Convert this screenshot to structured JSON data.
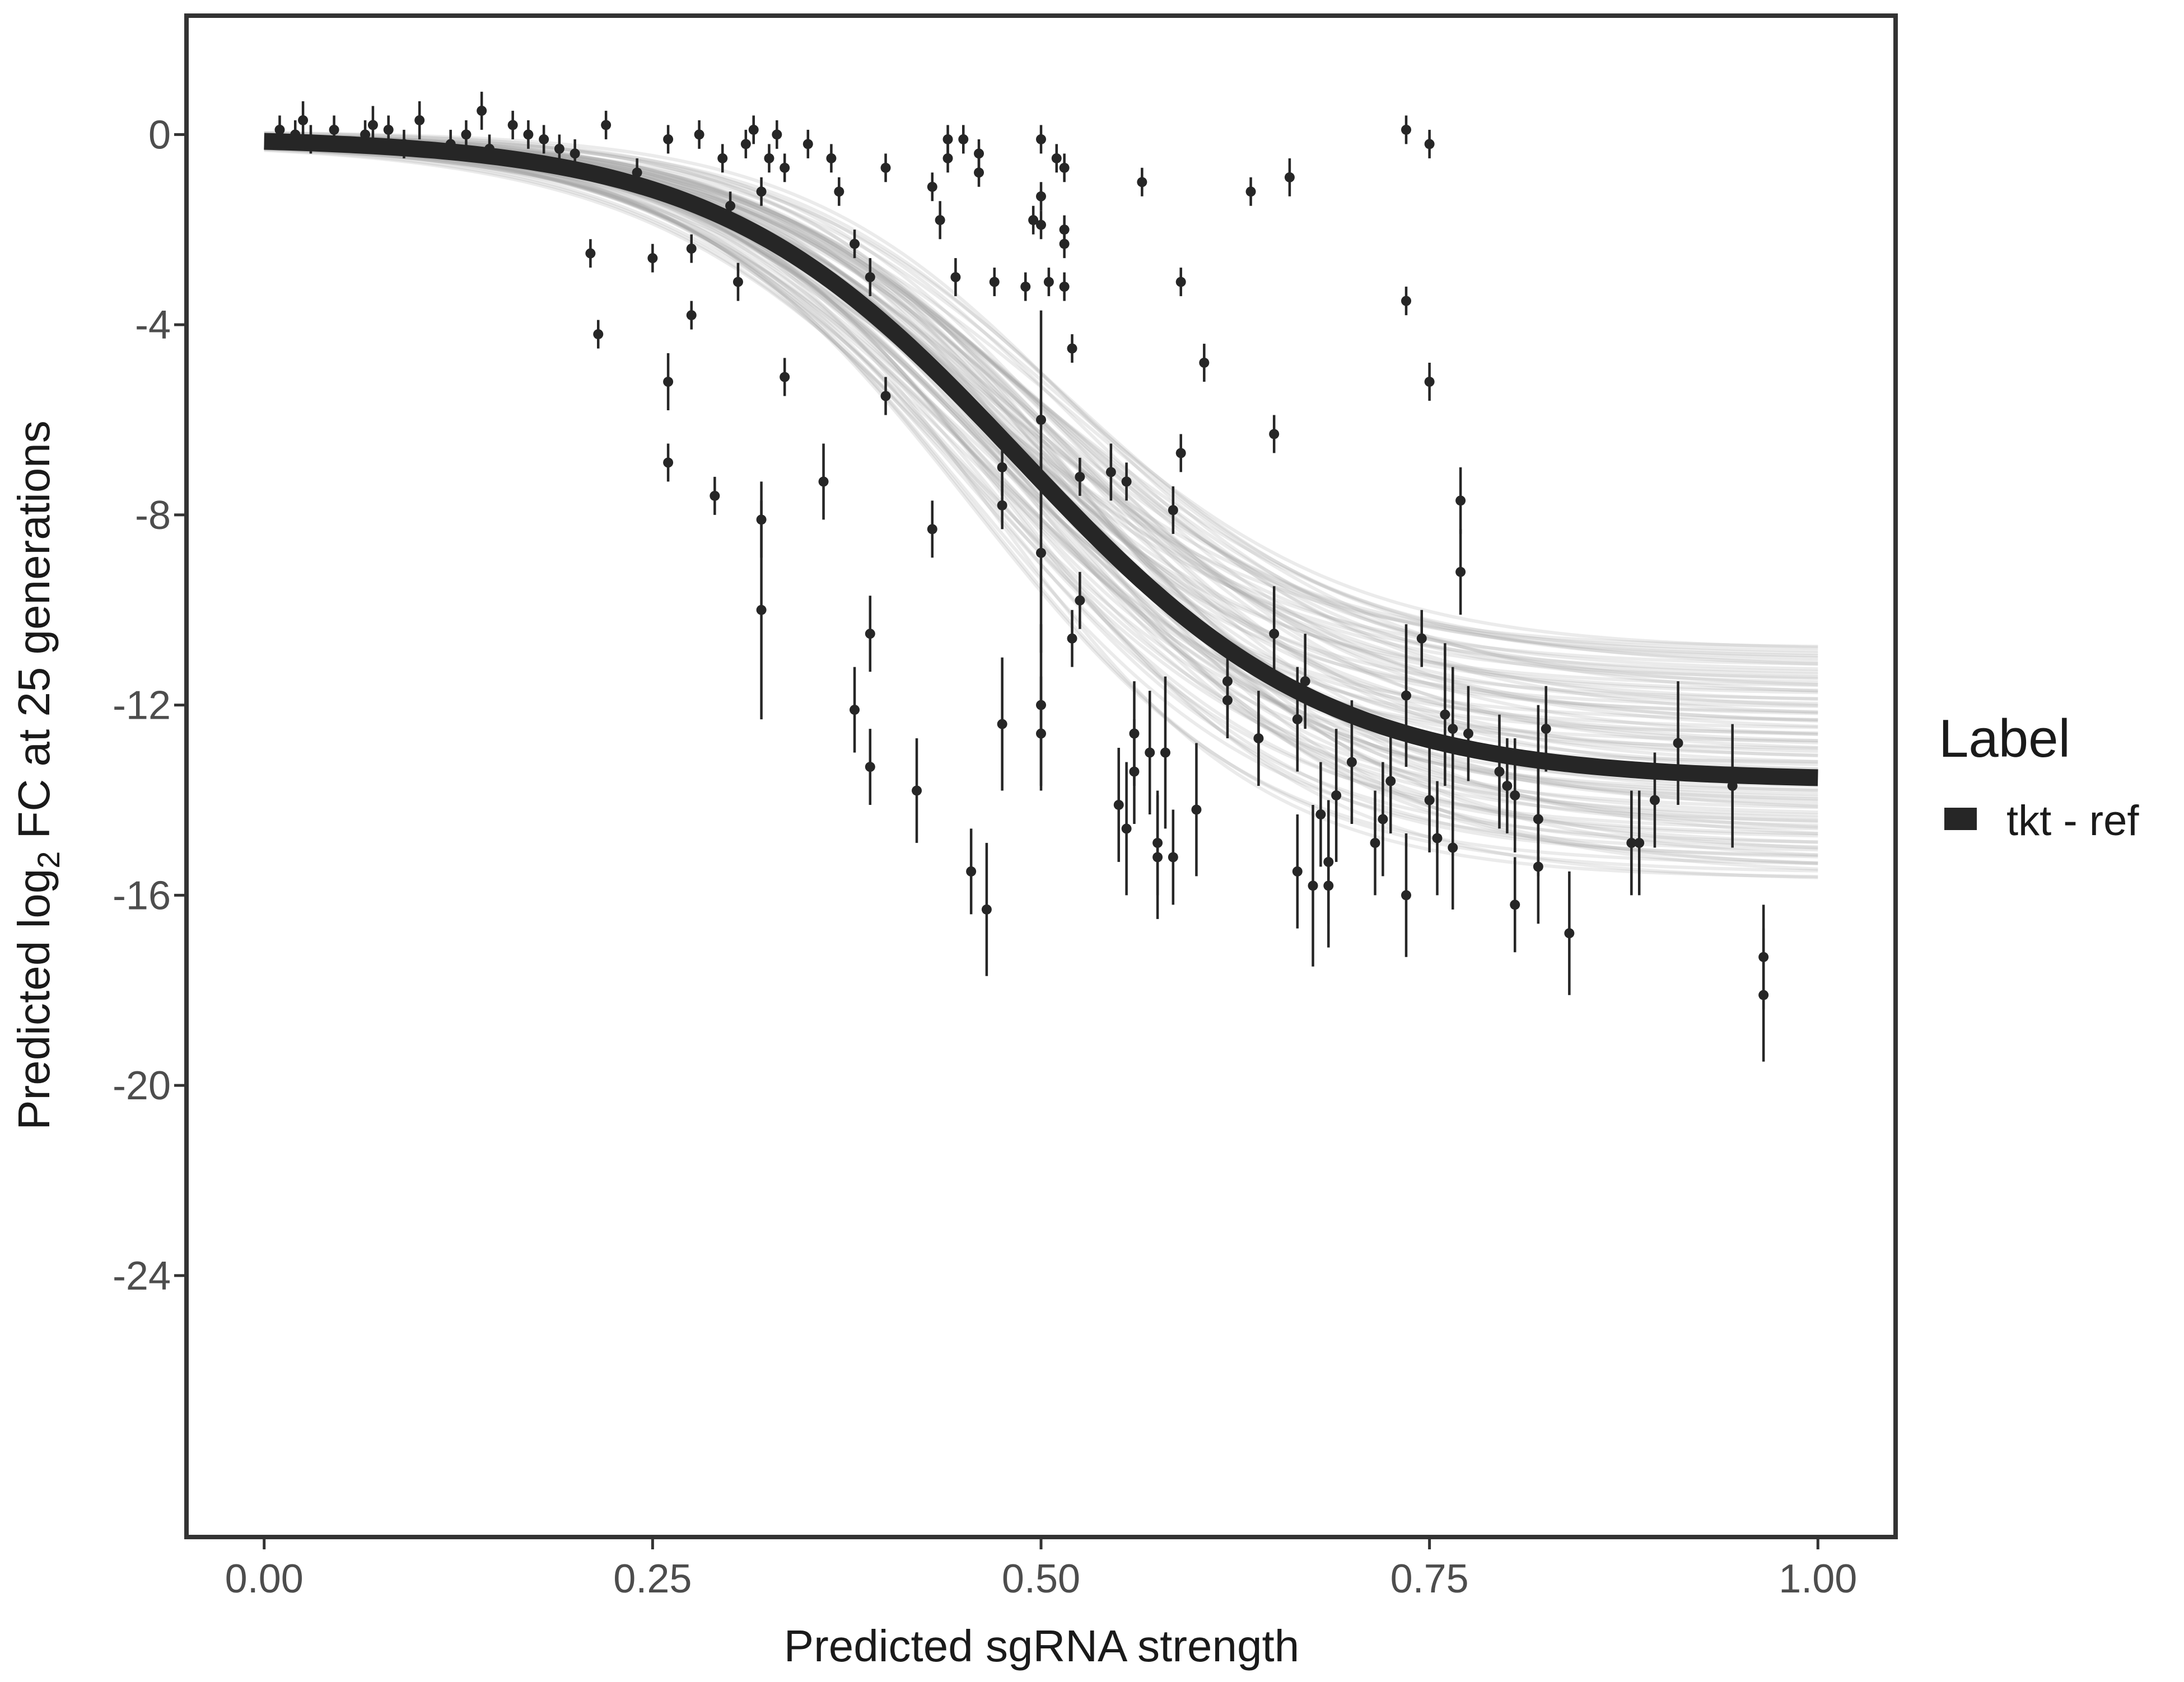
{
  "chart_data": {
    "type": "scatter",
    "xlabel": "Predicted sgRNA strength",
    "ylabel_prefix": "Predicted  log",
    "ylabel_sub": "2",
    "ylabel_suffix": " FC at 25 generations",
    "xlim": [
      -0.05,
      1.05
    ],
    "ylim": [
      -29.5,
      2.5
    ],
    "x_ticks": [
      0,
      0.25,
      0.5,
      0.75,
      1
    ],
    "x_tick_labels": [
      "0.00",
      "0.25",
      "0.50",
      "0.75",
      "1.00"
    ],
    "y_ticks": [
      0,
      -4,
      -8,
      -12,
      -16,
      -20,
      -24
    ],
    "y_tick_labels": [
      "0",
      "-4",
      "-8",
      "-12",
      "-16",
      "-20",
      "-24"
    ],
    "grid": false,
    "legend": {
      "title": "Label",
      "position": "right",
      "entries": [
        {
          "label": "tkt - ref",
          "color": "#262626"
        }
      ]
    },
    "fit_curve": {
      "type": "logistic",
      "upper": -0.05,
      "lower": -13.6,
      "midpoint": 0.487,
      "scale": 0.098,
      "color": "#262626",
      "band_color": "#a6a6a6",
      "band_upper_lower_asymptote": -10.8,
      "band_lower_lower_asymptote": -15.7
    },
    "points": [
      {
        "x": 0.01,
        "y": 0.1,
        "err": 0.3
      },
      {
        "x": 0.02,
        "y": 0.0,
        "err": 0.3
      },
      {
        "x": 0.025,
        "y": 0.3,
        "err": 0.4
      },
      {
        "x": 0.03,
        "y": -0.1,
        "err": 0.3
      },
      {
        "x": 0.045,
        "y": 0.1,
        "err": 0.3
      },
      {
        "x": 0.065,
        "y": 0.0,
        "err": 0.3
      },
      {
        "x": 0.07,
        "y": 0.2,
        "err": 0.4
      },
      {
        "x": 0.08,
        "y": 0.1,
        "err": 0.3
      },
      {
        "x": 0.09,
        "y": -0.2,
        "err": 0.3
      },
      {
        "x": 0.1,
        "y": 0.3,
        "err": 0.4
      },
      {
        "x": 0.12,
        "y": -0.2,
        "err": 0.3
      },
      {
        "x": 0.13,
        "y": 0.0,
        "err": 0.3
      },
      {
        "x": 0.14,
        "y": 0.5,
        "err": 0.4
      },
      {
        "x": 0.145,
        "y": -0.3,
        "err": 0.3
      },
      {
        "x": 0.16,
        "y": 0.2,
        "err": 0.3
      },
      {
        "x": 0.17,
        "y": 0.0,
        "err": 0.3
      },
      {
        "x": 0.18,
        "y": -0.1,
        "err": 0.3
      },
      {
        "x": 0.19,
        "y": -0.3,
        "err": 0.3
      },
      {
        "x": 0.2,
        "y": -0.4,
        "err": 0.3
      },
      {
        "x": 0.21,
        "y": -2.5,
        "err": 0.3
      },
      {
        "x": 0.215,
        "y": -4.2,
        "err": 0.3
      },
      {
        "x": 0.22,
        "y": 0.2,
        "err": 0.3
      },
      {
        "x": 0.24,
        "y": -0.8,
        "err": 0.3
      },
      {
        "x": 0.25,
        "y": -2.6,
        "err": 0.3
      },
      {
        "x": 0.26,
        "y": -0.1,
        "err": 0.3
      },
      {
        "x": 0.26,
        "y": -5.2,
        "err": 0.6
      },
      {
        "x": 0.26,
        "y": -6.9,
        "err": 0.4
      },
      {
        "x": 0.275,
        "y": -2.4,
        "err": 0.3
      },
      {
        "x": 0.275,
        "y": -3.8,
        "err": 0.3
      },
      {
        "x": 0.28,
        "y": 0.0,
        "err": 0.3
      },
      {
        "x": 0.29,
        "y": -7.6,
        "err": 0.4
      },
      {
        "x": 0.295,
        "y": -0.5,
        "err": 0.3
      },
      {
        "x": 0.3,
        "y": -1.5,
        "err": 0.3
      },
      {
        "x": 0.305,
        "y": -3.1,
        "err": 0.4
      },
      {
        "x": 0.31,
        "y": -0.2,
        "err": 0.3
      },
      {
        "x": 0.315,
        "y": 0.1,
        "err": 0.3
      },
      {
        "x": 0.32,
        "y": -1.2,
        "err": 0.3
      },
      {
        "x": 0.32,
        "y": -8.1,
        "err": 0.8
      },
      {
        "x": 0.32,
        "y": -10.0,
        "err": 2.3
      },
      {
        "x": 0.325,
        "y": -0.5,
        "err": 0.3
      },
      {
        "x": 0.33,
        "y": 0.0,
        "err": 0.3
      },
      {
        "x": 0.335,
        "y": -5.1,
        "err": 0.4
      },
      {
        "x": 0.335,
        "y": -0.7,
        "err": 0.3
      },
      {
        "x": 0.35,
        "y": -0.2,
        "err": 0.3
      },
      {
        "x": 0.36,
        "y": -7.3,
        "err": 0.8
      },
      {
        "x": 0.365,
        "y": -0.5,
        "err": 0.3
      },
      {
        "x": 0.37,
        "y": -1.2,
        "err": 0.3
      },
      {
        "x": 0.38,
        "y": -2.3,
        "err": 0.3
      },
      {
        "x": 0.38,
        "y": -12.1,
        "err": 0.9
      },
      {
        "x": 0.39,
        "y": -3.0,
        "err": 0.4
      },
      {
        "x": 0.39,
        "y": -10.5,
        "err": 0.8
      },
      {
        "x": 0.39,
        "y": -13.3,
        "err": 0.8
      },
      {
        "x": 0.4,
        "y": -0.7,
        "err": 0.3
      },
      {
        "x": 0.4,
        "y": -5.5,
        "err": 0.4
      },
      {
        "x": 0.42,
        "y": -13.8,
        "err": 1.1
      },
      {
        "x": 0.43,
        "y": -1.1,
        "err": 0.3
      },
      {
        "x": 0.43,
        "y": -8.3,
        "err": 0.6
      },
      {
        "x": 0.435,
        "y": -1.8,
        "err": 0.4
      },
      {
        "x": 0.44,
        "y": -0.1,
        "err": 0.3
      },
      {
        "x": 0.44,
        "y": -0.5,
        "err": 0.3
      },
      {
        "x": 0.445,
        "y": -3.0,
        "err": 0.4
      },
      {
        "x": 0.45,
        "y": -0.1,
        "err": 0.3
      },
      {
        "x": 0.455,
        "y": -15.5,
        "err": 0.9
      },
      {
        "x": 0.46,
        "y": -0.4,
        "err": 0.3
      },
      {
        "x": 0.46,
        "y": -0.8,
        "err": 0.3
      },
      {
        "x": 0.465,
        "y": -16.3,
        "err": 1.4
      },
      {
        "x": 0.47,
        "y": -3.1,
        "err": 0.3
      },
      {
        "x": 0.475,
        "y": -7.0,
        "err": 0.6
      },
      {
        "x": 0.475,
        "y": -7.8,
        "err": 0.5
      },
      {
        "x": 0.475,
        "y": -12.4,
        "err": 1.4
      },
      {
        "x": 0.49,
        "y": -3.2,
        "err": 0.3
      },
      {
        "x": 0.495,
        "y": -1.8,
        "err": 0.3
      },
      {
        "x": 0.5,
        "y": -0.1,
        "err": 0.3
      },
      {
        "x": 0.5,
        "y": -1.3,
        "err": 0.3
      },
      {
        "x": 0.5,
        "y": -1.9,
        "err": 0.3
      },
      {
        "x": 0.5,
        "y": -6.0,
        "err": 2.3
      },
      {
        "x": 0.5,
        "y": -8.8,
        "err": 2.1
      },
      {
        "x": 0.5,
        "y": -12.0,
        "err": 1.7
      },
      {
        "x": 0.5,
        "y": -12.6,
        "err": 1.2
      },
      {
        "x": 0.505,
        "y": -3.1,
        "err": 0.3
      },
      {
        "x": 0.51,
        "y": -0.5,
        "err": 0.3
      },
      {
        "x": 0.515,
        "y": -0.7,
        "err": 0.3
      },
      {
        "x": 0.515,
        "y": -2.0,
        "err": 0.3
      },
      {
        "x": 0.515,
        "y": -2.3,
        "err": 0.3
      },
      {
        "x": 0.515,
        "y": -3.2,
        "err": 0.3
      },
      {
        "x": 0.52,
        "y": -4.5,
        "err": 0.3
      },
      {
        "x": 0.52,
        "y": -10.6,
        "err": 0.6
      },
      {
        "x": 0.525,
        "y": -9.8,
        "err": 0.6
      },
      {
        "x": 0.525,
        "y": -7.2,
        "err": 0.4
      },
      {
        "x": 0.545,
        "y": -7.1,
        "err": 0.6
      },
      {
        "x": 0.55,
        "y": -14.1,
        "err": 1.2
      },
      {
        "x": 0.555,
        "y": -7.3,
        "err": 0.4
      },
      {
        "x": 0.555,
        "y": -14.6,
        "err": 1.4
      },
      {
        "x": 0.56,
        "y": -13.4,
        "err": 1.1
      },
      {
        "x": 0.56,
        "y": -12.6,
        "err": 1.1
      },
      {
        "x": 0.565,
        "y": -1.0,
        "err": 0.3
      },
      {
        "x": 0.57,
        "y": -13.0,
        "err": 1.3
      },
      {
        "x": 0.575,
        "y": -14.9,
        "err": 1.1
      },
      {
        "x": 0.575,
        "y": -15.2,
        "err": 1.3
      },
      {
        "x": 0.58,
        "y": -13.0,
        "err": 1.6
      },
      {
        "x": 0.585,
        "y": -15.2,
        "err": 1.0
      },
      {
        "x": 0.585,
        "y": -7.9,
        "err": 0.5
      },
      {
        "x": 0.59,
        "y": -6.7,
        "err": 0.4
      },
      {
        "x": 0.59,
        "y": -3.1,
        "err": 0.3
      },
      {
        "x": 0.6,
        "y": -14.2,
        "err": 1.4
      },
      {
        "x": 0.605,
        "y": -4.8,
        "err": 0.4
      },
      {
        "x": 0.62,
        "y": -11.5,
        "err": 0.8
      },
      {
        "x": 0.62,
        "y": -11.9,
        "err": 0.8
      },
      {
        "x": 0.635,
        "y": -1.2,
        "err": 0.3
      },
      {
        "x": 0.64,
        "y": -12.7,
        "err": 1.0
      },
      {
        "x": 0.65,
        "y": -6.3,
        "err": 0.4
      },
      {
        "x": 0.65,
        "y": -10.5,
        "err": 1.0
      },
      {
        "x": 0.66,
        "y": -0.9,
        "err": 0.4
      },
      {
        "x": 0.665,
        "y": -12.3,
        "err": 1.1
      },
      {
        "x": 0.665,
        "y": -15.5,
        "err": 1.2
      },
      {
        "x": 0.67,
        "y": -11.5,
        "err": 1.0
      },
      {
        "x": 0.675,
        "y": -15.8,
        "err": 1.7
      },
      {
        "x": 0.68,
        "y": -14.3,
        "err": 1.1
      },
      {
        "x": 0.685,
        "y": -15.3,
        "err": 1.3
      },
      {
        "x": 0.685,
        "y": -15.8,
        "err": 1.3
      },
      {
        "x": 0.69,
        "y": -13.9,
        "err": 1.4
      },
      {
        "x": 0.7,
        "y": -13.2,
        "err": 1.3
      },
      {
        "x": 0.715,
        "y": -14.9,
        "err": 1.1
      },
      {
        "x": 0.72,
        "y": -14.4,
        "err": 1.2
      },
      {
        "x": 0.725,
        "y": -13.6,
        "err": 1.1
      },
      {
        "x": 0.735,
        "y": 0.1,
        "err": 0.3
      },
      {
        "x": 0.735,
        "y": -3.5,
        "err": 0.3
      },
      {
        "x": 0.735,
        "y": -11.8,
        "err": 1.5
      },
      {
        "x": 0.735,
        "y": -16.0,
        "err": 1.3
      },
      {
        "x": 0.745,
        "y": -10.6,
        "err": 0.6
      },
      {
        "x": 0.75,
        "y": -0.2,
        "err": 0.3
      },
      {
        "x": 0.75,
        "y": -5.2,
        "err": 0.4
      },
      {
        "x": 0.75,
        "y": -14.0,
        "err": 1.1
      },
      {
        "x": 0.755,
        "y": -14.8,
        "err": 1.2
      },
      {
        "x": 0.76,
        "y": -12.2,
        "err": 1.5
      },
      {
        "x": 0.765,
        "y": -15.0,
        "err": 1.3
      },
      {
        "x": 0.765,
        "y": -12.5,
        "err": 1.3
      },
      {
        "x": 0.77,
        "y": -7.7,
        "err": 0.7
      },
      {
        "x": 0.77,
        "y": -9.2,
        "err": 0.9
      },
      {
        "x": 0.775,
        "y": -12.6,
        "err": 1.0
      },
      {
        "x": 0.795,
        "y": -13.4,
        "err": 1.2
      },
      {
        "x": 0.8,
        "y": -13.7,
        "err": 1.0
      },
      {
        "x": 0.805,
        "y": -13.9,
        "err": 1.2
      },
      {
        "x": 0.805,
        "y": -16.2,
        "err": 1.0
      },
      {
        "x": 0.82,
        "y": -14.4,
        "err": 1.2
      },
      {
        "x": 0.82,
        "y": -15.4,
        "err": 1.2
      },
      {
        "x": 0.82,
        "y": -13.1,
        "err": 1.1
      },
      {
        "x": 0.825,
        "y": -12.5,
        "err": 0.9
      },
      {
        "x": 0.84,
        "y": -16.8,
        "err": 1.3
      },
      {
        "x": 0.88,
        "y": -14.9,
        "err": 1.1
      },
      {
        "x": 0.885,
        "y": -14.9,
        "err": 1.1
      },
      {
        "x": 0.895,
        "y": -14.0,
        "err": 1.0
      },
      {
        "x": 0.91,
        "y": -12.8,
        "err": 1.3
      },
      {
        "x": 0.945,
        "y": -13.7,
        "err": 1.3
      },
      {
        "x": 0.965,
        "y": -18.1,
        "err": 1.4
      },
      {
        "x": 0.965,
        "y": -17.3,
        "err": 1.1
      }
    ]
  }
}
